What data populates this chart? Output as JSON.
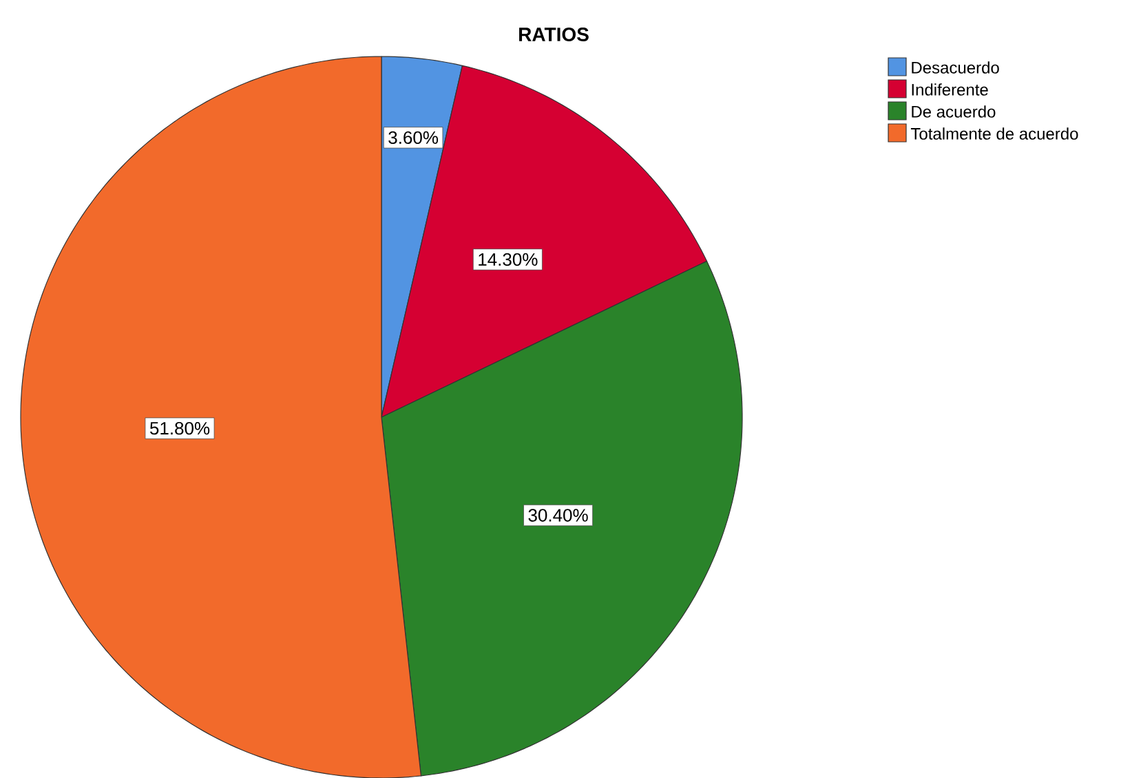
{
  "chart_data": {
    "type": "pie",
    "title": "RATIOS",
    "categories": [
      "Desacuerdo",
      "Indiferente",
      "De acuerdo",
      "Totalmente de acuerdo"
    ],
    "values": [
      3.6,
      14.3,
      30.4,
      51.8
    ],
    "value_labels": [
      "3.60%",
      "14.30%",
      "30.40%",
      "51.80%"
    ],
    "colors": [
      "#5294e2",
      "#d50032",
      "#2a832a",
      "#f26a2b"
    ],
    "legend": "top right"
  }
}
